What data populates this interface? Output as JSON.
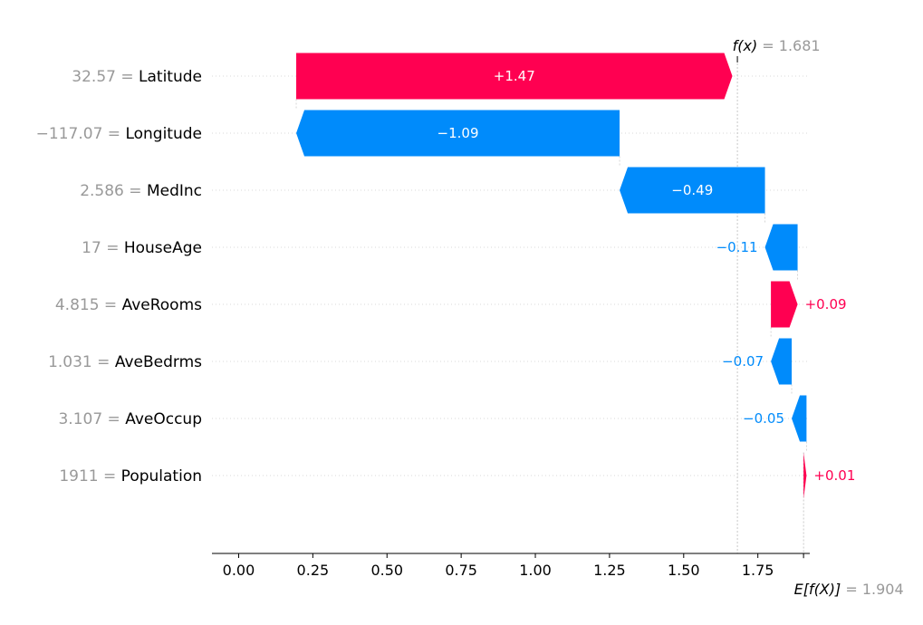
{
  "chart_data": {
    "type": "waterfall",
    "features": [
      {
        "name": "Latitude",
        "value_label": "32.57",
        "contribution": 1.47,
        "label": "+1.47"
      },
      {
        "name": "Longitude",
        "value_label": "−117.07",
        "contribution": -1.09,
        "label": "−1.09"
      },
      {
        "name": "MedInc",
        "value_label": "2.586",
        "contribution": -0.49,
        "label": "−0.49"
      },
      {
        "name": "HouseAge",
        "value_label": "17",
        "contribution": -0.11,
        "label": "−0.11"
      },
      {
        "name": "AveRooms",
        "value_label": "4.815",
        "contribution": 0.09,
        "label": "+0.09"
      },
      {
        "name": "AveBedrms",
        "value_label": "1.031",
        "contribution": -0.07,
        "label": "−0.07"
      },
      {
        "name": "AveOccup",
        "value_label": "3.107",
        "contribution": -0.05,
        "label": "−0.05"
      },
      {
        "name": "Population",
        "value_label": "1911",
        "contribution": 0.01,
        "label": "+0.01"
      }
    ],
    "base_value": 1.904,
    "output_value": 1.681,
    "fx_label": "f(x)",
    "fx_value_text": "= 1.681",
    "ex_label": "E[f(X)]",
    "ex_value_text": "= 1.904",
    "x_ticks": [
      0.0,
      0.25,
      0.5,
      0.75,
      1.0,
      1.25,
      1.5,
      1.75
    ],
    "x_tick_labels": [
      "0.00",
      "0.25",
      "0.50",
      "0.75",
      "1.00",
      "1.25",
      "1.50",
      "1.75"
    ],
    "xlim": [
      -0.09,
      1.925
    ],
    "colors": {
      "positive": "#ff0051",
      "negative": "#008bfb",
      "value_gray": "#999999",
      "text": "#000000"
    }
  }
}
